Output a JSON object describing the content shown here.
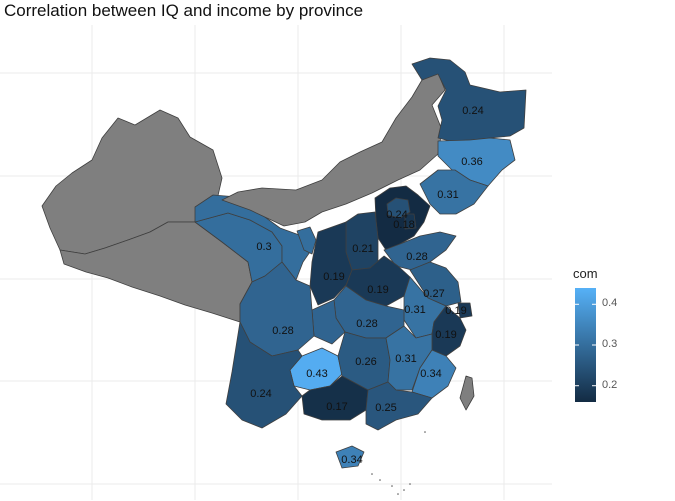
{
  "title": "Correlation between IQ and income by province",
  "legend": {
    "title": "com",
    "ticks": [
      "0.4",
      "0.3",
      "0.2"
    ],
    "tick_values": [
      0.4,
      0.3,
      0.2
    ],
    "range": [
      0.16,
      0.44
    ],
    "color_low": "#132B43",
    "color_high": "#56B1F7",
    "missing_color": "#7f7f7f"
  },
  "colors": {
    "background": "#ffffff",
    "grid": "#ebebeb",
    "province_border": "#3f3f3f"
  },
  "provinces": [
    {
      "id": "heilongjiang",
      "value": 0.24,
      "label": "0.24"
    },
    {
      "id": "jilin",
      "value": 0.36,
      "label": "0.36"
    },
    {
      "id": "liaoning",
      "value": 0.31,
      "label": "0.31"
    },
    {
      "id": "beijing",
      "value": 0.24,
      "label": "0.24"
    },
    {
      "id": "tianjin",
      "value": 0.18,
      "label": "0.18"
    },
    {
      "id": "hebei",
      "value": 0.15,
      "label": ""
    },
    {
      "id": "shanxi",
      "value": 0.21,
      "label": "0.21"
    },
    {
      "id": "shandong",
      "value": 0.28,
      "label": "0.28"
    },
    {
      "id": "shaanxi",
      "value": 0.19,
      "label": "0.19"
    },
    {
      "id": "henan",
      "value": 0.19,
      "label": "0.19"
    },
    {
      "id": "jiangsu",
      "value": 0.27,
      "label": "0.27"
    },
    {
      "id": "anhui",
      "value": 0.31,
      "label": "0.31"
    },
    {
      "id": "shanghai",
      "value": 0.19,
      "label": "0.19"
    },
    {
      "id": "zhejiang",
      "value": 0.19,
      "label": "0.19"
    },
    {
      "id": "hubei",
      "value": 0.28,
      "label": "0.28"
    },
    {
      "id": "sichuan",
      "value": 0.28,
      "label": "0.28"
    },
    {
      "id": "chongqing",
      "value": 0.28,
      "label": ""
    },
    {
      "id": "gansu",
      "value": 0.3,
      "label": "0.3"
    },
    {
      "id": "qinghai",
      "value": 0.3,
      "label": ""
    },
    {
      "id": "ningxia",
      "value": 0.3,
      "label": ""
    },
    {
      "id": "hunan",
      "value": 0.26,
      "label": "0.26"
    },
    {
      "id": "jiangxi",
      "value": 0.31,
      "label": "0.31"
    },
    {
      "id": "fujian",
      "value": 0.34,
      "label": "0.34"
    },
    {
      "id": "guizhou",
      "value": 0.43,
      "label": "0.43"
    },
    {
      "id": "yunnan",
      "value": 0.24,
      "label": "0.24"
    },
    {
      "id": "guangxi",
      "value": 0.17,
      "label": "0.17"
    },
    {
      "id": "guangdong",
      "value": 0.25,
      "label": "0.25"
    },
    {
      "id": "hainan",
      "value": 0.34,
      "label": "0.34"
    },
    {
      "id": "xinjiang",
      "value": null,
      "label": ""
    },
    {
      "id": "tibet",
      "value": null,
      "label": ""
    },
    {
      "id": "inner-mongolia",
      "value": null,
      "label": ""
    },
    {
      "id": "taiwan",
      "value": null,
      "label": ""
    }
  ]
}
